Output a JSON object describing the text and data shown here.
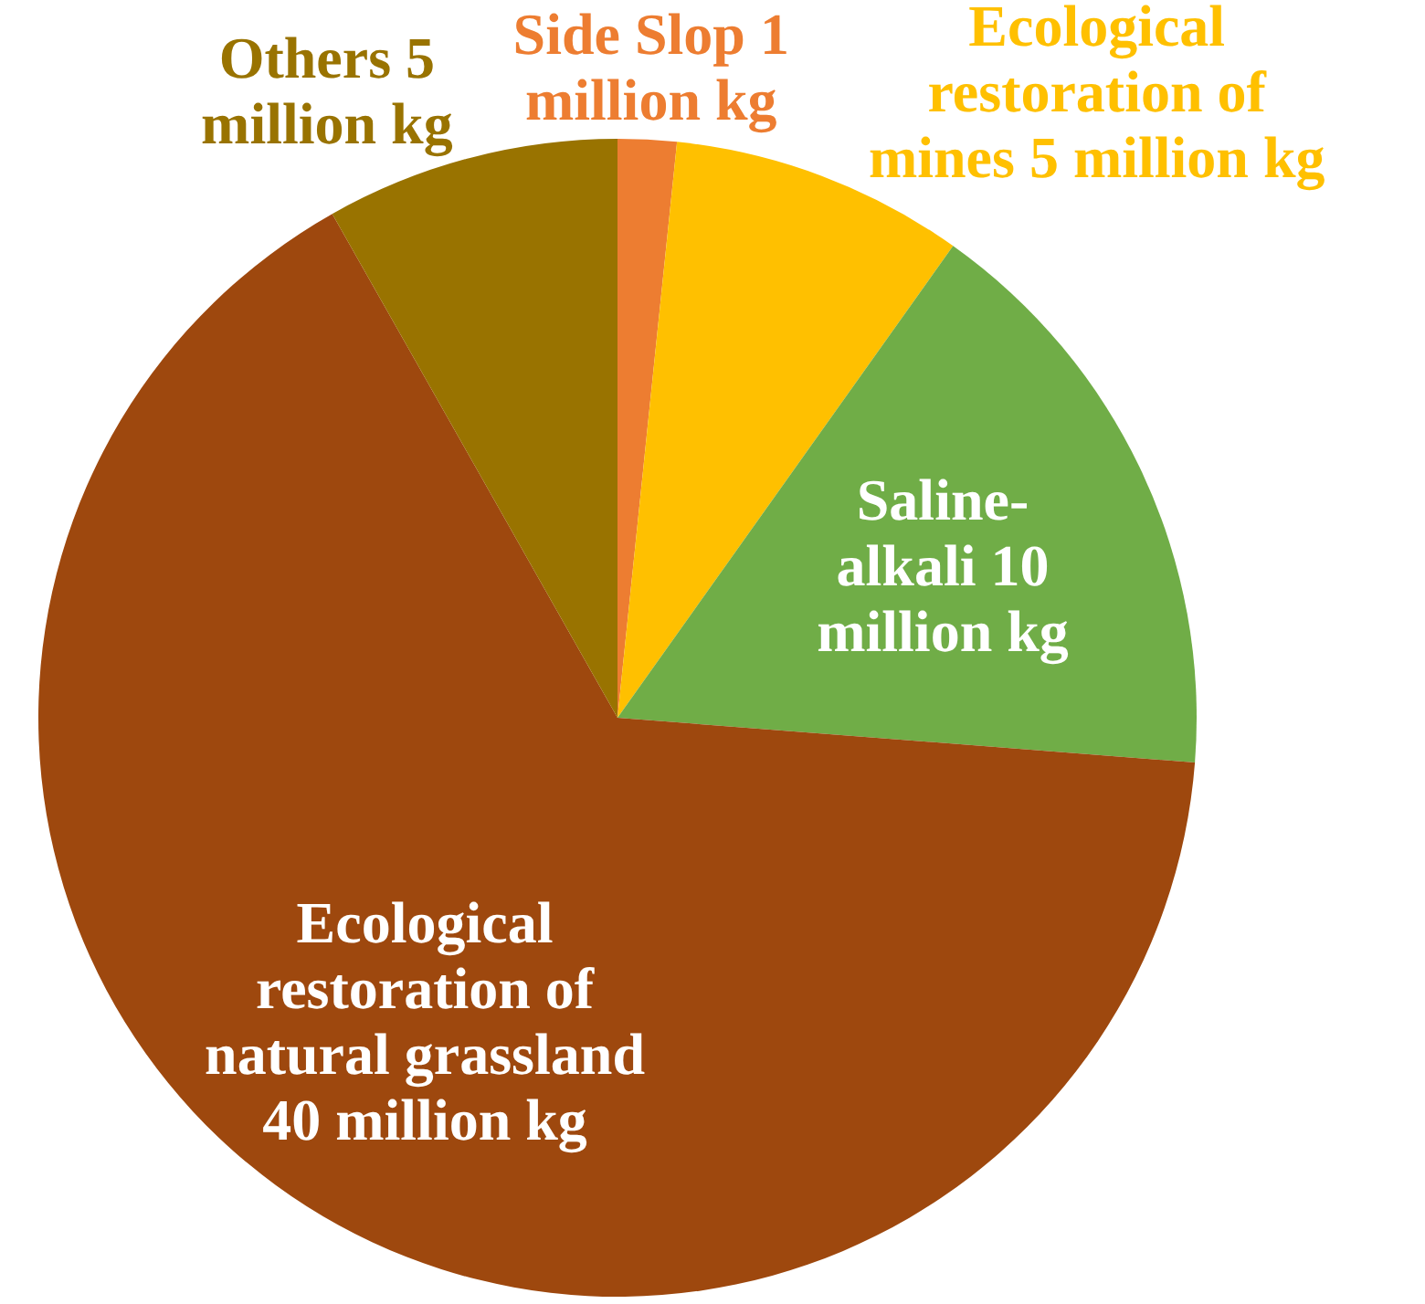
{
  "chart_data": {
    "type": "pie",
    "categories": [
      "Side Slop",
      "Ecological restoration of mines",
      "Saline-alkali",
      "Ecological restoration of natural grassland",
      "Others"
    ],
    "values": [
      1,
      5,
      10,
      40,
      5
    ],
    "value_labels": [
      "1 million kg",
      "5 million kg",
      "10 million kg",
      "40 million kg",
      "5 million kg"
    ],
    "colors": [
      "#ed7d31",
      "#ffc000",
      "#70ad47",
      "#9e480e",
      "#997300"
    ]
  }
}
